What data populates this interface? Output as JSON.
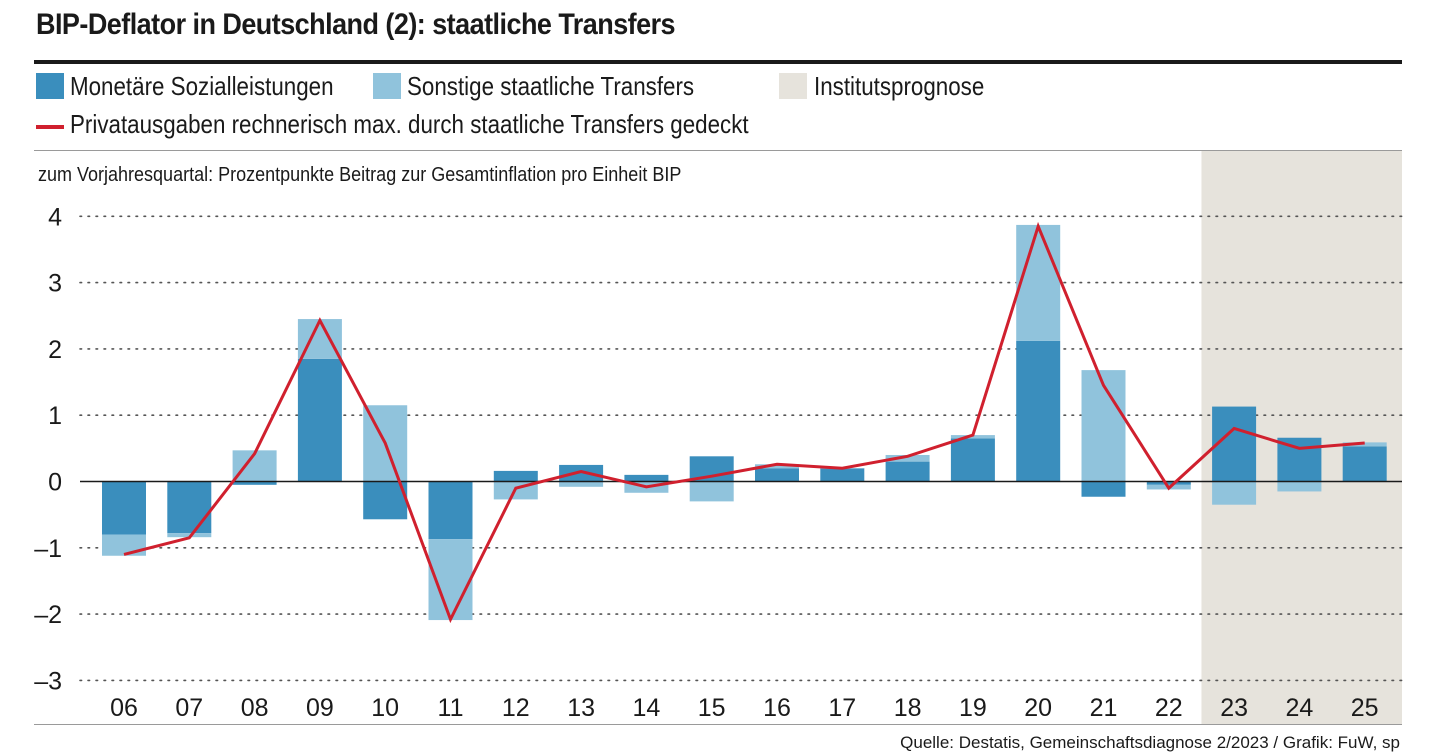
{
  "header": {
    "title": "BIP-Deflator in Deutschland (2): staatliche Transfers",
    "subtitle": "zum Vorjahresquartal: Prozentpunkte Beitrag zur Gesamtinflation pro Einheit BIP",
    "source": "Quelle: Destatis, Gemeinschaftsdiagnose 2/2023 / Grafik: FuW, sp"
  },
  "legend": {
    "dark": "Monetäre Sozialleistungen",
    "light": "Sonstige staatliche Transfers",
    "forecast": "Institutsprognose",
    "line": "Privatausgaben rechnerisch max. durch staatliche Transfers gedeckt"
  },
  "colors": {
    "dark_bar": "#3a8ebd",
    "light_bar": "#90c3dc",
    "line": "#d0202e",
    "forecast_bg": "#e6e3dc",
    "text": "#1a1a1a"
  },
  "chart_data": {
    "type": "bar",
    "stacked": true,
    "categories": [
      "06",
      "07",
      "08",
      "09",
      "10",
      "11",
      "12",
      "13",
      "14",
      "15",
      "16",
      "17",
      "18",
      "19",
      "20",
      "21",
      "22",
      "23",
      "24",
      "25"
    ],
    "series": [
      {
        "name": "Monetäre Sozialleistungen",
        "values": [
          -0.8,
          -0.78,
          -0.05,
          1.85,
          -0.57,
          -0.87,
          0.16,
          0.25,
          0.1,
          0.38,
          0.2,
          0.2,
          0.3,
          0.65,
          2.12,
          -0.23,
          -0.05,
          1.13,
          0.66,
          0.53
        ]
      },
      {
        "name": "Sonstige staatliche Transfers",
        "values": [
          -0.32,
          -0.06,
          0.47,
          0.6,
          1.15,
          -1.22,
          -0.27,
          -0.08,
          -0.17,
          -0.3,
          0.06,
          0.0,
          0.1,
          0.05,
          1.75,
          1.68,
          -0.07,
          -0.35,
          -0.15,
          0.06
        ]
      },
      {
        "name": "Privatausgaben rechnerisch max. durch staatliche Transfers gedeckt",
        "type": "line",
        "values": [
          -1.1,
          -0.85,
          0.42,
          2.43,
          0.58,
          -2.08,
          -0.1,
          0.15,
          -0.08,
          0.08,
          0.26,
          0.2,
          0.38,
          0.7,
          3.85,
          1.45,
          -0.1,
          0.8,
          0.5,
          0.58
        ]
      }
    ],
    "forecast_start": "22.5",
    "forecast_label": "Institutsprognose",
    "ylim": [
      -3,
      4
    ],
    "yticks": [
      4,
      3,
      2,
      1,
      0,
      -1,
      -2,
      -3
    ],
    "ytick_labels": [
      "4",
      "3",
      "2",
      "1",
      "0",
      "–1",
      "–2",
      "–3"
    ],
    "grid": true,
    "xlabel": "",
    "ylabel": ""
  }
}
